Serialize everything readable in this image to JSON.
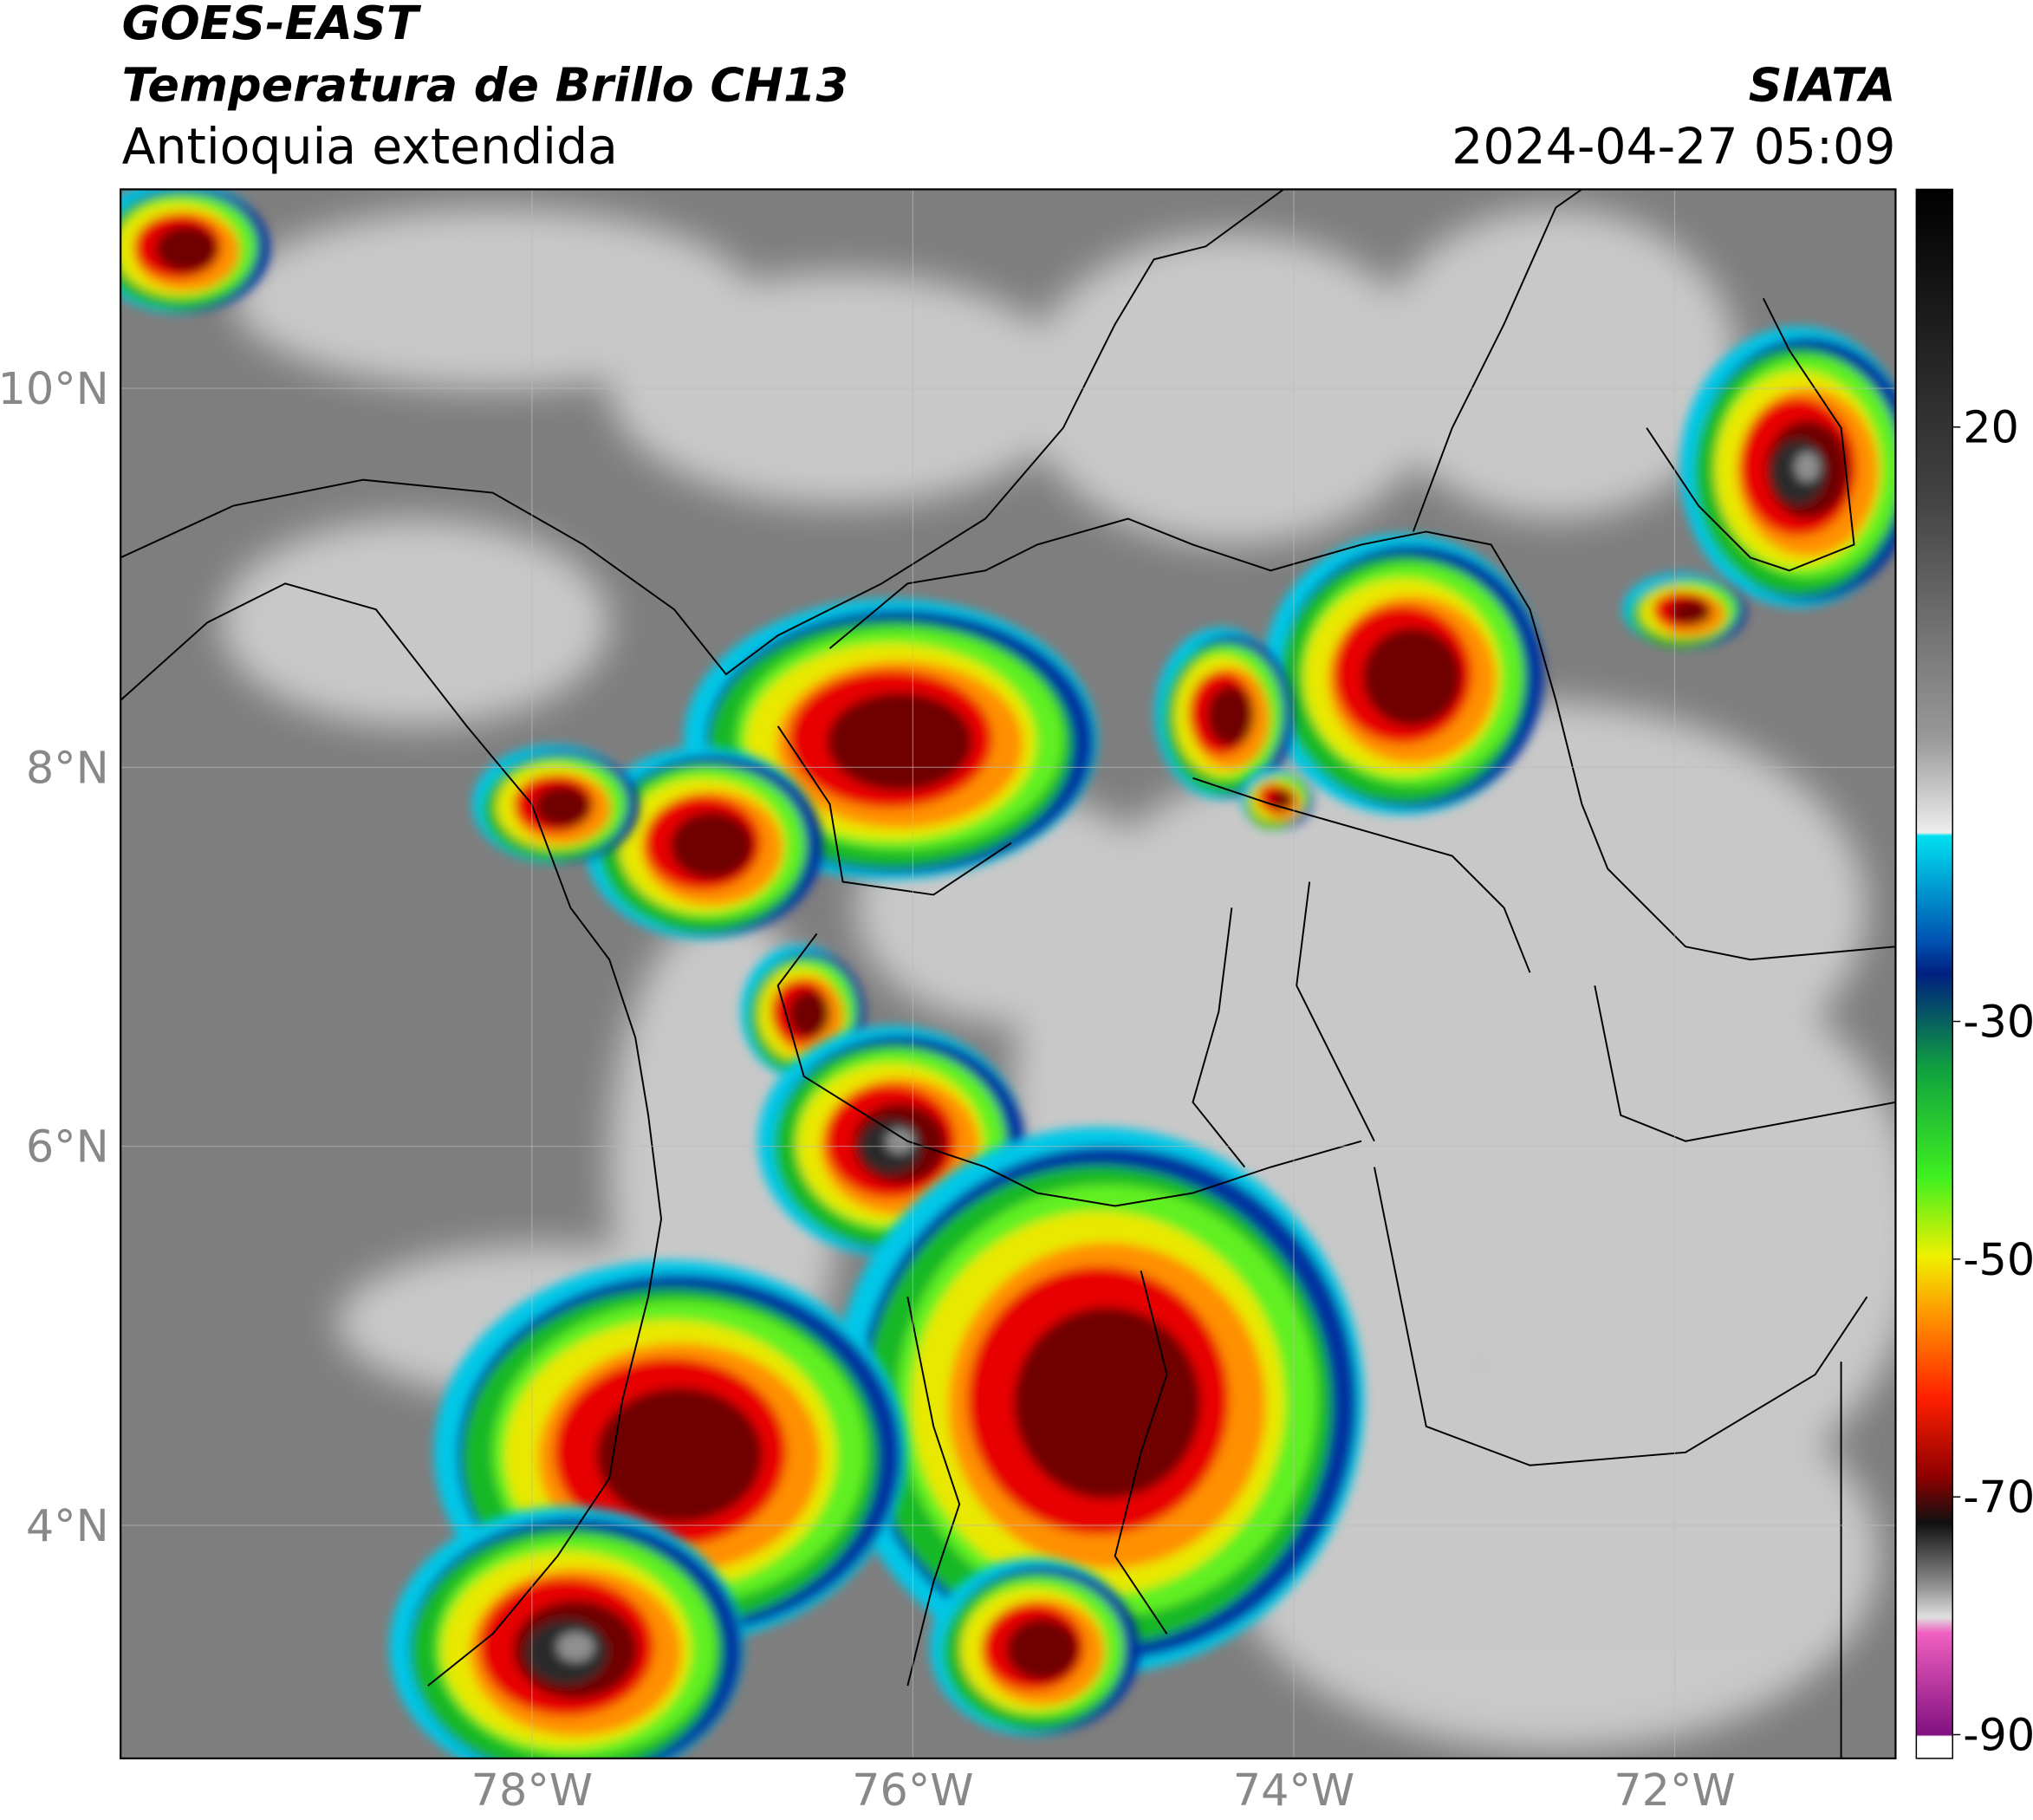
{
  "header": {
    "satellite": "GOES-EAST",
    "product": "Temperatura de Brillo CH13",
    "region": "Antioquia extendida",
    "source": "SIATA",
    "datetime": "2024-04-27 05:09"
  },
  "map": {
    "xlim": [
      -80.16,
      -70.84
    ],
    "ylim": [
      2.77,
      11.05
    ],
    "xticks": [
      {
        "value": -78,
        "label": "78°W"
      },
      {
        "value": -76,
        "label": "76°W"
      },
      {
        "value": -74,
        "label": "74°W"
      },
      {
        "value": -72,
        "label": "72°W"
      }
    ],
    "yticks": [
      {
        "value": 10,
        "label": "10°N"
      },
      {
        "value": 8,
        "label": "8°N"
      },
      {
        "value": 6,
        "label": "6°N"
      },
      {
        "value": 4,
        "label": "4°N"
      }
    ],
    "grid": true,
    "colorbar": {
      "lim": [
        -92,
        40
      ],
      "ticks": [
        20,
        -30,
        -50,
        -70,
        -90
      ]
    }
  }
}
